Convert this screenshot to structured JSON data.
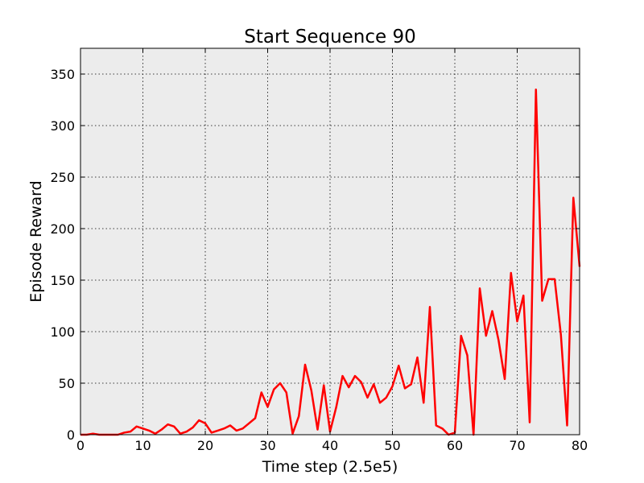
{
  "chart_data": {
    "type": "line",
    "title": "Start Sequence 90",
    "xlabel": "Time step (2.5e5)",
    "ylabel": "Episode Reward",
    "xlim": [
      0,
      80
    ],
    "ylim": [
      0,
      375
    ],
    "xticks": [
      0,
      10,
      20,
      30,
      40,
      50,
      60,
      70,
      80
    ],
    "yticks": [
      0,
      50,
      100,
      150,
      200,
      250,
      300,
      350
    ],
    "grid": true,
    "background": "#ececec",
    "series": [
      {
        "color": "#ff0000",
        "x": [
          0,
          1,
          2,
          3,
          4,
          5,
          6,
          7,
          8,
          9,
          10,
          11,
          12,
          13,
          14,
          15,
          16,
          17,
          18,
          19,
          20,
          21,
          22,
          23,
          24,
          25,
          26,
          27,
          28,
          29,
          30,
          31,
          32,
          33,
          34,
          35,
          36,
          37,
          38,
          39,
          40,
          41,
          42,
          43,
          44,
          45,
          46,
          47,
          48,
          49,
          50,
          51,
          52,
          53,
          54,
          55,
          56,
          57,
          58,
          59,
          60,
          61,
          62,
          63,
          64,
          65,
          66,
          67,
          68,
          69,
          70,
          71,
          72,
          73,
          74,
          75,
          76,
          77,
          78,
          79,
          80
        ],
        "y": [
          0,
          0,
          1,
          0,
          0,
          0,
          0,
          2,
          3,
          8,
          6,
          4,
          1,
          5,
          10,
          8,
          1,
          3,
          7,
          14,
          11,
          2,
          4,
          6,
          9,
          4,
          6,
          11,
          16,
          41,
          27,
          44,
          50,
          41,
          1,
          18,
          68,
          43,
          5,
          48,
          3,
          27,
          57,
          46,
          57,
          51,
          36,
          49,
          31,
          36,
          47,
          67,
          45,
          49,
          75,
          31,
          124,
          9,
          6,
          0,
          2,
          96,
          77,
          0,
          142,
          96,
          120,
          92,
          54,
          157,
          110,
          135,
          12,
          335,
          130,
          151,
          151,
          97,
          9,
          230,
          163
        ]
      }
    ]
  }
}
